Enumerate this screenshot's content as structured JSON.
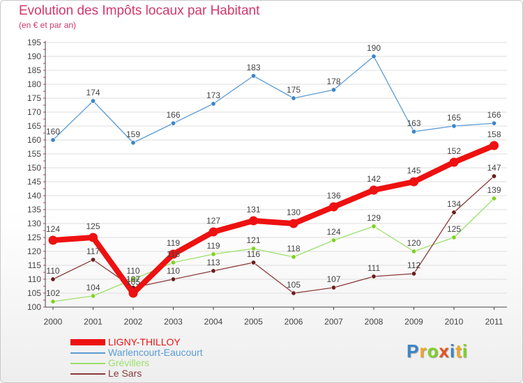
{
  "header": {
    "title": "Evolution des Impôts locaux par Habitant",
    "subtitle": "(en € et par an)"
  },
  "colors": {
    "title": "#d2386a",
    "axis": "#444444",
    "grid": "#dddddd",
    "tick_accent": "#cc3366"
  },
  "chart_data": {
    "type": "line",
    "title": "Evolution des Impôts locaux par Habitant",
    "subtitle": "(en € et par an)",
    "xlabel": "",
    "ylabel": "",
    "x": [
      "2000",
      "2001",
      "2002",
      "2003",
      "2004",
      "2005",
      "2006",
      "2007",
      "2008",
      "2009",
      "2010",
      "2011"
    ],
    "ylim": [
      100,
      195
    ],
    "yticks": [
      100,
      105,
      110,
      115,
      120,
      125,
      130,
      135,
      140,
      145,
      150,
      155,
      160,
      165,
      170,
      175,
      180,
      185,
      190,
      195
    ],
    "grid": "horizontal",
    "legend_position": "bottom-left",
    "series": [
      {
        "name": "Warlencourt-Eaucourt",
        "color": "#5b9bd5",
        "marker_color": "#3a86c8",
        "label_color": "#444444",
        "weight": "thin",
        "values": [
          160,
          174,
          159,
          166,
          173,
          183,
          175,
          178,
          190,
          163,
          165,
          166
        ]
      },
      {
        "name": "Grévillers",
        "color": "#9be06a",
        "marker_color": "#7ed321",
        "label_color": "#444444",
        "weight": "thin",
        "values": [
          102,
          104,
          110,
          116,
          119,
          121,
          118,
          124,
          129,
          120,
          125,
          139
        ]
      },
      {
        "name": "Le Sars",
        "color": "#8b3a3a",
        "marker_color": "#6b1d1d",
        "label_color": "#444444",
        "weight": "thin",
        "values": [
          110,
          117,
          107,
          110,
          113,
          116,
          105,
          107,
          111,
          112,
          134,
          147
        ]
      },
      {
        "name": "LIGNY-THILLOY",
        "color": "#ee1111",
        "marker_color": "#ee1111",
        "label_color": "#444444",
        "weight": "thick",
        "values": [
          124,
          125,
          105,
          119,
          127,
          131,
          130,
          136,
          142,
          145,
          152,
          158
        ]
      }
    ],
    "legend_order": [
      "LIGNY-THILLOY",
      "Warlencourt-Eaucourt",
      "Grévillers",
      "Le Sars"
    ]
  },
  "legend": [
    {
      "label": "LIGNY-THILLOY",
      "color": "#ee1111"
    },
    {
      "label": "Warlencourt-Eaucourt",
      "color": "#5b9bd5"
    },
    {
      "label": "Grévillers",
      "color": "#9be06a"
    },
    {
      "label": "Le Sars",
      "color": "#8b3a3a"
    }
  ],
  "logo": {
    "letters": [
      "P",
      "r",
      "o",
      "x",
      "i",
      "t",
      "i"
    ],
    "colors": [
      "#3a86c8",
      "#f5a623",
      "#7ed321",
      "#e94e1b",
      "#3a86c8",
      "#f5a623",
      "#7ed321"
    ],
    "label": "Proxiti"
  }
}
